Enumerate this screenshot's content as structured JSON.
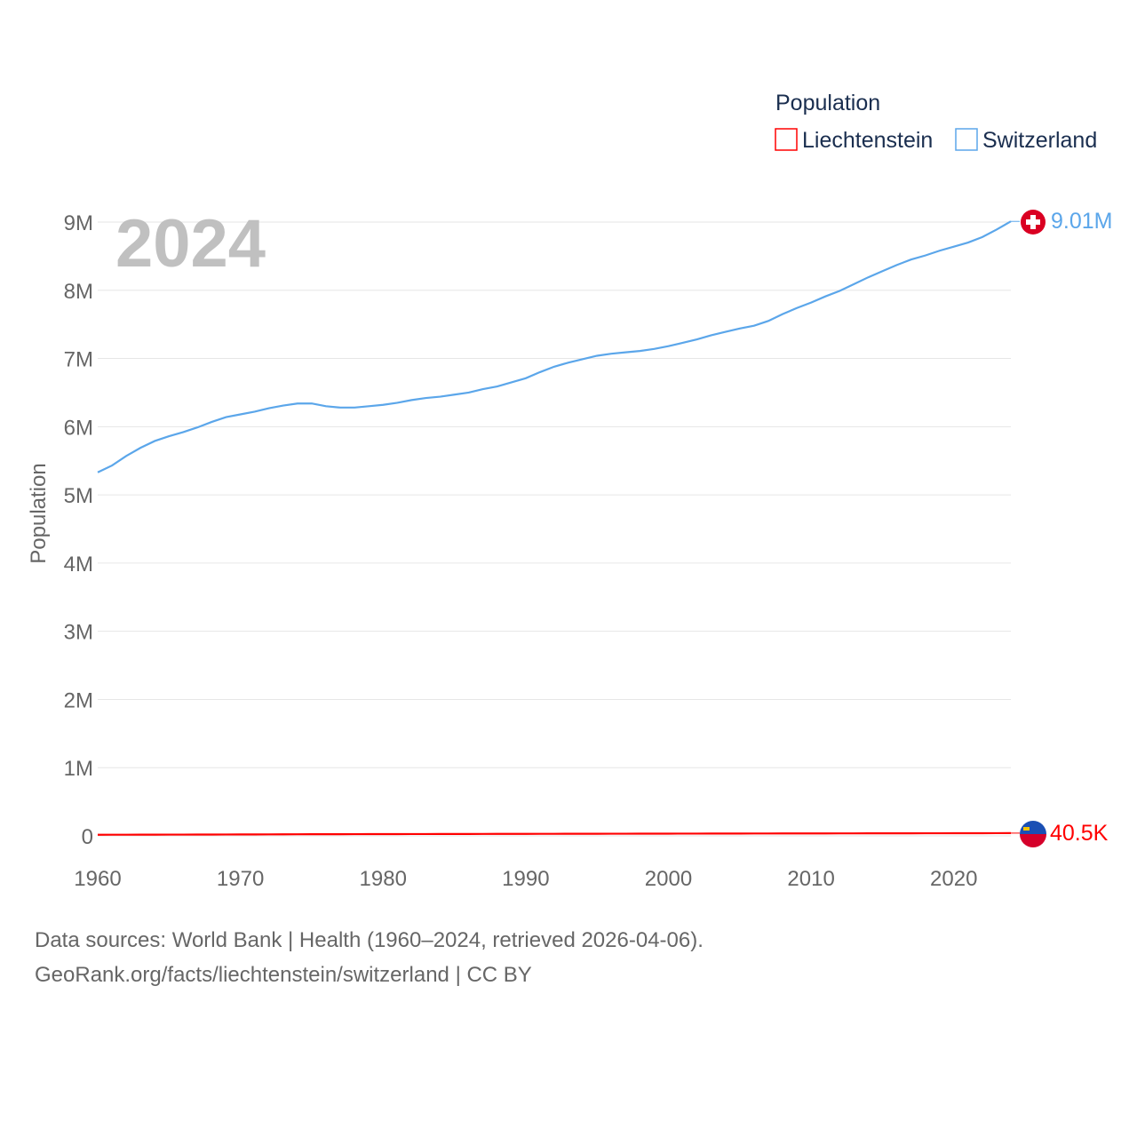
{
  "chart_data": {
    "type": "line",
    "year_label": "2024",
    "ylabel": "Population",
    "legend": {
      "title": "Population",
      "placement": "top-right",
      "entries": [
        {
          "name": "Liechtenstein",
          "color": "#ff0000"
        },
        {
          "name": "Switzerland",
          "color": "#5ba6ea"
        }
      ]
    },
    "xlim": [
      1960,
      2024
    ],
    "ylim": [
      0,
      9000000
    ],
    "xticks": [
      1960,
      1970,
      1980,
      1990,
      2000,
      2010,
      2020
    ],
    "xtick_labels": [
      "1960",
      "1970",
      "1980",
      "1990",
      "2000",
      "2010",
      "2020"
    ],
    "yticks": [
      0,
      1000000,
      2000000,
      3000000,
      4000000,
      5000000,
      6000000,
      7000000,
      8000000,
      9000000
    ],
    "ytick_labels": [
      "0",
      "1M",
      "2M",
      "3M",
      "4M",
      "5M",
      "6M",
      "7M",
      "8M",
      "9M"
    ],
    "x": [
      1960,
      1961,
      1962,
      1963,
      1964,
      1965,
      1966,
      1967,
      1968,
      1969,
      1970,
      1971,
      1972,
      1973,
      1974,
      1975,
      1976,
      1977,
      1978,
      1979,
      1980,
      1981,
      1982,
      1983,
      1984,
      1985,
      1986,
      1987,
      1988,
      1989,
      1990,
      1991,
      1992,
      1993,
      1994,
      1995,
      1996,
      1997,
      1998,
      1999,
      2000,
      2001,
      2002,
      2003,
      2004,
      2005,
      2006,
      2007,
      2008,
      2009,
      2010,
      2011,
      2012,
      2013,
      2014,
      2015,
      2016,
      2017,
      2018,
      2019,
      2020,
      2021,
      2022,
      2023,
      2024
    ],
    "series": [
      {
        "name": "Switzerland",
        "color": "#5ba6ea",
        "end_label": "9.01M",
        "values": [
          5330000,
          5430000,
          5570000,
          5690000,
          5790000,
          5860000,
          5920000,
          5990000,
          6070000,
          6140000,
          6180000,
          6220000,
          6270000,
          6310000,
          6340000,
          6340000,
          6300000,
          6280000,
          6280000,
          6300000,
          6320000,
          6350000,
          6390000,
          6420000,
          6440000,
          6470000,
          6500000,
          6550000,
          6590000,
          6650000,
          6710000,
          6800000,
          6880000,
          6940000,
          6990000,
          7040000,
          7070000,
          7090000,
          7110000,
          7140000,
          7180000,
          7230000,
          7280000,
          7340000,
          7390000,
          7440000,
          7480000,
          7550000,
          7650000,
          7740000,
          7820000,
          7910000,
          7990000,
          8090000,
          8190000,
          8280000,
          8370000,
          8450000,
          8510000,
          8580000,
          8640000,
          8700000,
          8780000,
          8890000,
          9010000
        ]
      },
      {
        "name": "Liechtenstein",
        "color": "#ff0000",
        "end_label": "40.5K",
        "values": [
          16500,
          16900,
          17300,
          17700,
          18100,
          18600,
          19000,
          19500,
          20000,
          20500,
          21100,
          21600,
          22200,
          22800,
          23400,
          24000,
          24500,
          24900,
          25300,
          25600,
          25900,
          26300,
          26600,
          27000,
          27400,
          27800,
          28100,
          28500,
          28900,
          29300,
          29600,
          30000,
          30300,
          30600,
          31000,
          31300,
          31700,
          32000,
          32400,
          32700,
          33000,
          33300,
          33700,
          34000,
          34300,
          34600,
          34900,
          35200,
          35500,
          35800,
          36000,
          36200,
          36400,
          36700,
          37000,
          37300,
          37600,
          37900,
          38100,
          38300,
          38600,
          39000,
          39400,
          40000,
          40500
        ]
      }
    ]
  },
  "footer": {
    "line1": "Data sources: World Bank | Health (1960–2024, retrieved 2026-04-06).",
    "line2": "GeoRank.org/facts/liechtenstein/switzerland | CC BY"
  }
}
